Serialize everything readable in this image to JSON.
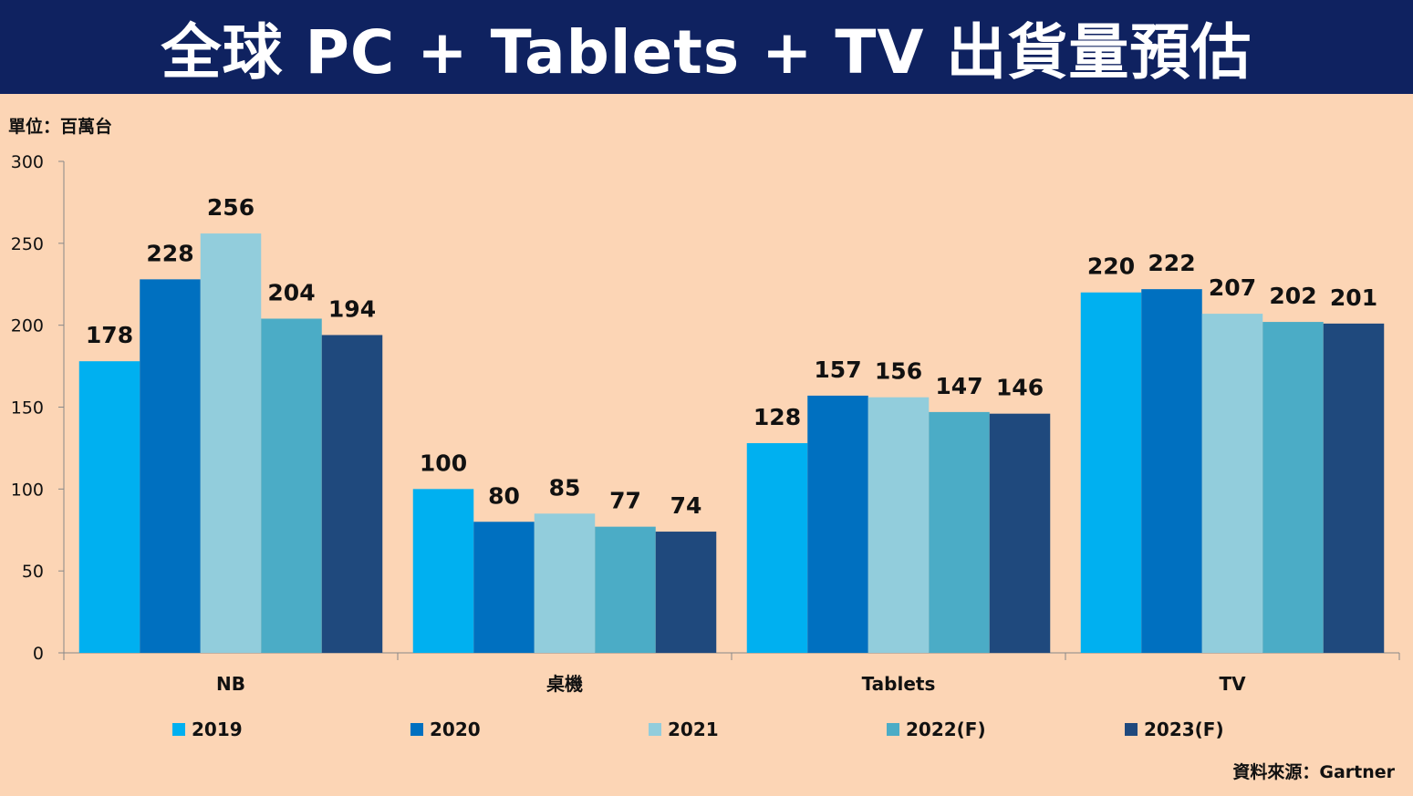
{
  "header": {
    "title": "全球 PC + Tablets + TV 出貨量預估"
  },
  "unit": "單位：百萬台",
  "source": "資料來源：Gartner",
  "colors": {
    "title_bar": "#0f2260",
    "background": "#fcd5b5"
  },
  "chart_data": {
    "type": "bar",
    "title": "全球 PC + Tablets + TV 出貨量預估",
    "ylabel": "單位：百萬台",
    "ylim": [
      0,
      300
    ],
    "yticks": [
      0,
      50,
      100,
      150,
      200,
      250,
      300
    ],
    "grid": false,
    "legend": "bottom",
    "categories": [
      "NB",
      "桌機",
      "Tablets",
      "TV"
    ],
    "series": [
      {
        "name": "2019",
        "color": "#00b0f0",
        "values": [
          178,
          100,
          128,
          220
        ]
      },
      {
        "name": "2020",
        "color": "#0070c0",
        "values": [
          228,
          80,
          157,
          222
        ]
      },
      {
        "name": "2021",
        "color": "#92cddc",
        "values": [
          256,
          85,
          156,
          207
        ]
      },
      {
        "name": "2022(F)",
        "color": "#4bacc6",
        "values": [
          204,
          77,
          147,
          202
        ]
      },
      {
        "name": "2023(F)",
        "color": "#1f497d",
        "values": [
          194,
          74,
          146,
          201
        ]
      }
    ]
  }
}
